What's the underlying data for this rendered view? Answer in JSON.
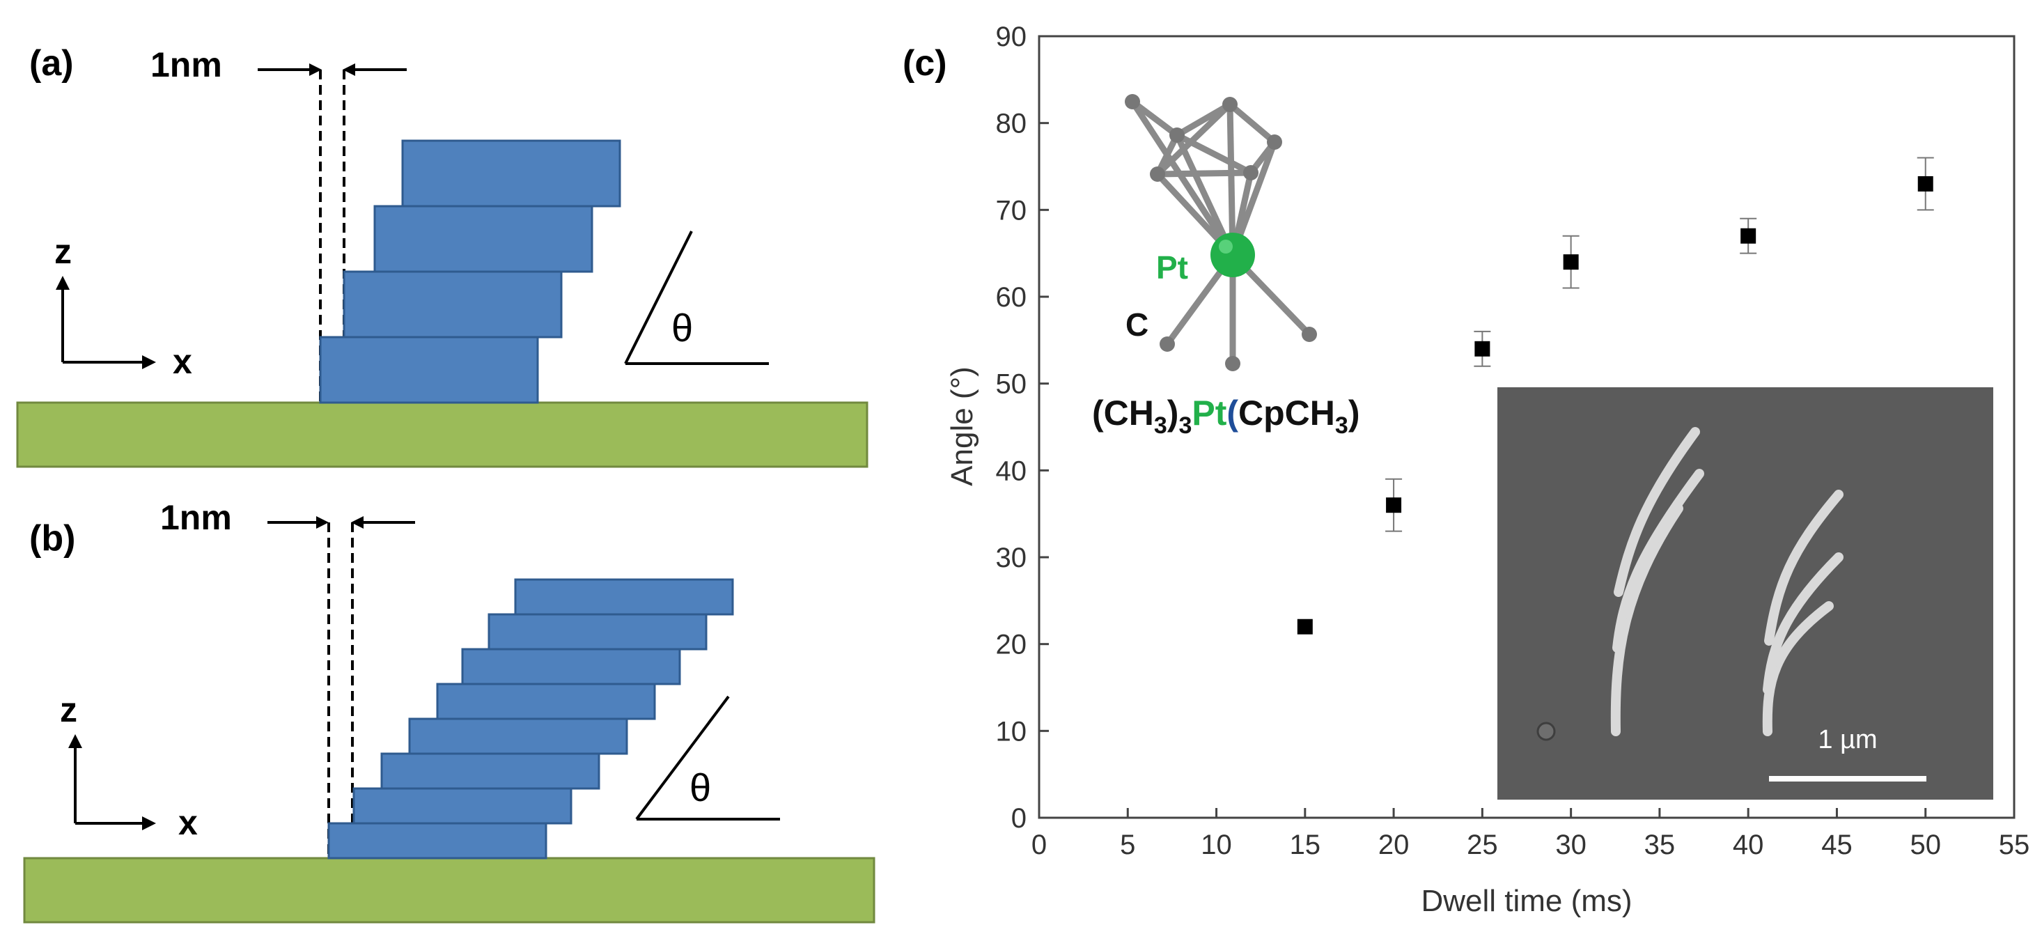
{
  "panels": {
    "a": {
      "label": "(a)",
      "gap_label": "1nm",
      "axis_z": "z",
      "axis_x": "x",
      "theta": "θ"
    },
    "b": {
      "label": "(b)",
      "gap_label": "1nm",
      "axis_z": "z",
      "axis_x": "x",
      "theta": "θ"
    },
    "c": {
      "label": "(c)",
      "molecule": {
        "pt_label": "Pt",
        "c_label": "C",
        "formula_part1": "(CH",
        "formula_sub1": "3",
        "formula_part2": ")",
        "formula_sub2": "3",
        "formula_pt": "Pt",
        "formula_paren": "(",
        "formula_part3": "CpCH",
        "formula_sub3": "3",
        "formula_close": ")"
      },
      "inset": {
        "scale_bar_label": "1 µm"
      }
    }
  },
  "colors": {
    "layer_blue": "#4f81bd",
    "layer_edge": "#2f5b8f",
    "substrate_green": "#9bbb59",
    "substrate_edge": "#71893f",
    "pt_green": "#22b04a",
    "cp_blue": "#1f4e99",
    "marker": "#000000",
    "sem_bg": "#595959"
  },
  "chart_data": {
    "type": "scatter",
    "title": "",
    "xlabel": "Dwell time (ms)",
    "ylabel": "Angle (°)",
    "xlim": [
      0,
      55
    ],
    "ylim": [
      0,
      90
    ],
    "xticks": [
      0,
      5,
      10,
      15,
      20,
      25,
      30,
      35,
      40,
      45,
      50,
      55
    ],
    "yticks": [
      0,
      10,
      20,
      30,
      40,
      50,
      60,
      70,
      80,
      90
    ],
    "grid": false,
    "series": [
      {
        "name": "Angle",
        "marker": "square",
        "x": [
          15,
          20,
          25,
          30,
          40,
          50
        ],
        "y": [
          22,
          36,
          54,
          64,
          67,
          73
        ],
        "yerr": [
          0,
          3,
          2,
          3,
          2,
          3
        ]
      }
    ]
  }
}
